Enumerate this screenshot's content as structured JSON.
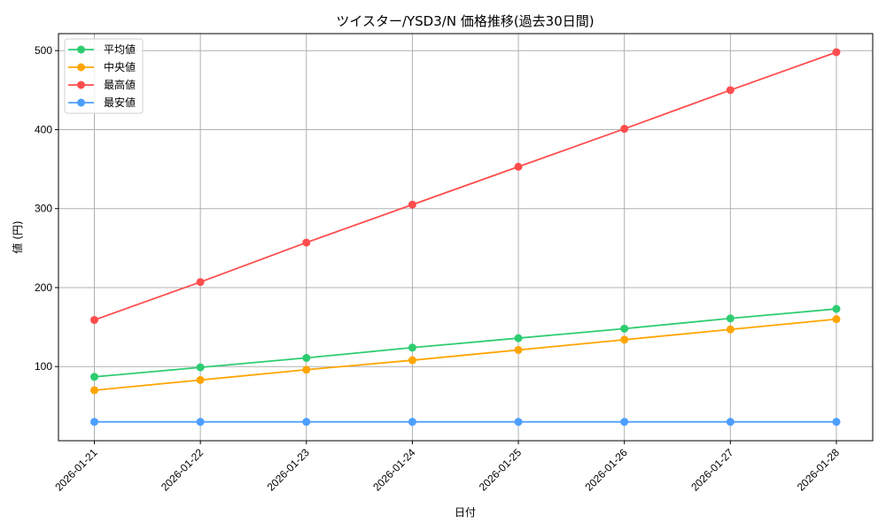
{
  "chart_data": {
    "type": "line",
    "title": "ツイスター/YSD3/N 価格推移(過去30日間)",
    "xlabel": "日付",
    "ylabel": "値 (円)",
    "categories": [
      "2026-01-21",
      "2026-01-22",
      "2026-01-23",
      "2026-01-24",
      "2026-01-25",
      "2026-01-26",
      "2026-01-27",
      "2026-01-28"
    ],
    "yticks": [
      100,
      200,
      300,
      400,
      500
    ],
    "ylim": [
      8,
      522
    ],
    "grid": true,
    "legend_position": "upper left",
    "series": [
      {
        "name": "平均値",
        "color": "#2ecc71",
        "values": [
          87,
          99,
          111,
          124,
          136,
          148,
          161,
          173
        ]
      },
      {
        "name": "中央値",
        "color": "#ffa500",
        "values": [
          70,
          83,
          96,
          108,
          121,
          134,
          147,
          160
        ]
      },
      {
        "name": "最高値",
        "color": "#ff4d4d",
        "values": [
          159,
          207,
          257,
          305,
          353,
          401,
          450,
          498
        ]
      },
      {
        "name": "最安値",
        "color": "#4d9fff",
        "values": [
          30,
          30,
          30,
          30,
          30,
          30,
          30,
          30
        ]
      }
    ]
  }
}
